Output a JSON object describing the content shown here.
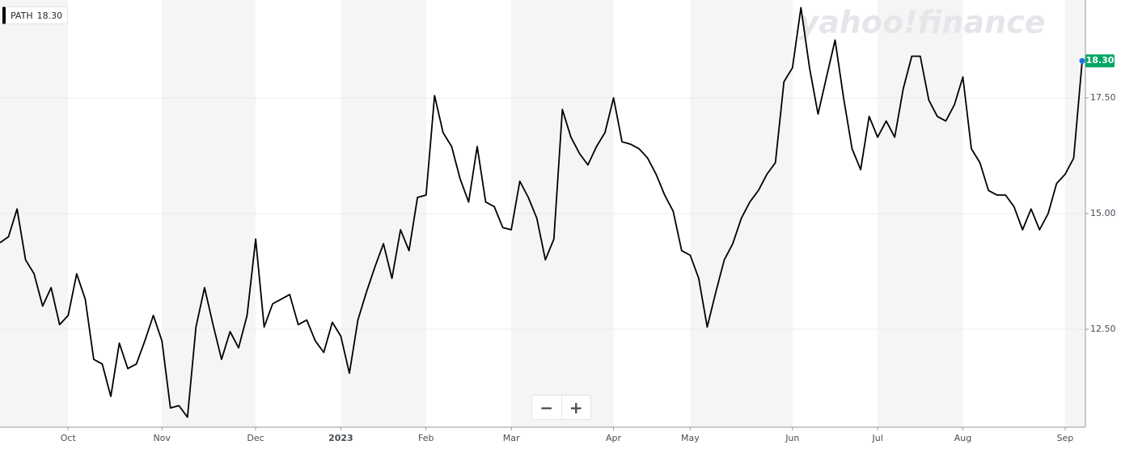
{
  "chart_data": {
    "type": "line",
    "watermark": "yahoo!finance",
    "zoom_controls": [
      "−",
      "+"
    ],
    "categories": [
      null,
      null,
      null,
      null,
      null,
      null,
      null,
      null,
      "Oct",
      null,
      null,
      null,
      null,
      null,
      null,
      null,
      null,
      null,
      null,
      "Nov",
      null,
      null,
      null,
      null,
      null,
      null,
      null,
      null,
      null,
      null,
      "Dec",
      null,
      null,
      null,
      null,
      null,
      null,
      null,
      null,
      null,
      "2023",
      null,
      null,
      null,
      null,
      null,
      null,
      null,
      null,
      null,
      "Feb",
      null,
      null,
      null,
      null,
      null,
      null,
      null,
      null,
      null,
      "Mar",
      null,
      null,
      null,
      null,
      null,
      null,
      null,
      null,
      null,
      null,
      null,
      "Apr",
      null,
      null,
      null,
      null,
      null,
      null,
      null,
      null,
      "May",
      null,
      null,
      null,
      null,
      null,
      null,
      null,
      null,
      null,
      null,
      null,
      "Jun",
      null,
      null,
      null,
      null,
      null,
      null,
      null,
      null,
      null,
      "Jul",
      null,
      null,
      null,
      null,
      null,
      null,
      null,
      null,
      null,
      "Aug",
      null,
      null,
      null,
      null,
      null,
      null,
      null,
      null,
      null,
      null,
      null,
      "Sep",
      null,
      null
    ],
    "series": [
      {
        "name": "PATH",
        "color": "#000000",
        "values": [
          14.37,
          14.5,
          15.1,
          14.0,
          13.7,
          13.0,
          13.4,
          12.6,
          12.8,
          13.7,
          13.15,
          11.85,
          11.75,
          11.05,
          12.2,
          11.65,
          11.75,
          12.25,
          12.8,
          12.25,
          10.8,
          10.85,
          10.6,
          12.55,
          13.4,
          12.6,
          11.85,
          12.45,
          12.1,
          12.8,
          14.45,
          12.55,
          13.05,
          13.15,
          13.25,
          12.6,
          12.7,
          12.25,
          12.0,
          12.65,
          12.35,
          11.55,
          12.7,
          13.3,
          13.85,
          14.35,
          13.6,
          14.65,
          14.2,
          15.35,
          15.4,
          17.55,
          16.75,
          16.45,
          15.75,
          15.25,
          16.45,
          15.25,
          15.15,
          14.7,
          14.65,
          15.7,
          15.35,
          14.9,
          14.0,
          14.45,
          17.25,
          16.65,
          16.3,
          16.05,
          16.45,
          16.75,
          17.5,
          16.55,
          16.5,
          16.4,
          16.2,
          15.85,
          15.4,
          15.05,
          14.2,
          14.1,
          13.6,
          12.55,
          13.3,
          14.0,
          14.35,
          14.9,
          15.25,
          15.5,
          15.85,
          16.1,
          17.85,
          18.15,
          19.45,
          18.15,
          17.15,
          17.95,
          18.75,
          17.5,
          16.4,
          15.95,
          17.1,
          16.65,
          17.0,
          16.65,
          17.7,
          18.4,
          18.4,
          17.45,
          17.1,
          17.0,
          17.35,
          17.95,
          16.4,
          16.1,
          15.5,
          15.4,
          15.4,
          15.15,
          14.65,
          15.1,
          14.65,
          15.0,
          15.65,
          15.85,
          16.2,
          18.3
        ],
        "value_labels": [
          null,
          null,
          null,
          null,
          null,
          null,
          null,
          null,
          null,
          null,
          null,
          null,
          null,
          null,
          null,
          null,
          null,
          null,
          null,
          null,
          null,
          null,
          null,
          null,
          null,
          null,
          null,
          null,
          null,
          null,
          null,
          null,
          null,
          null,
          null,
          null,
          null,
          null,
          null,
          null,
          null,
          null,
          null,
          null,
          null,
          null,
          null,
          null,
          null,
          null,
          null,
          null,
          null,
          null,
          null,
          null,
          null,
          null,
          null,
          null,
          null,
          null,
          null,
          null,
          null,
          null,
          null,
          null,
          null,
          null,
          null,
          null,
          null,
          null,
          null,
          null,
          null,
          null,
          null,
          null,
          null,
          null,
          null,
          null,
          null,
          null,
          null,
          null,
          null,
          null,
          null,
          null,
          null,
          null,
          null,
          null,
          null,
          null,
          null,
          null,
          null,
          null,
          null,
          null,
          null,
          null,
          null,
          null,
          null,
          null,
          null,
          null,
          null,
          null,
          null,
          null,
          null,
          null,
          null,
          null,
          null,
          null,
          null,
          null,
          null,
          null,
          null,
          "18.30"
        ],
        "label_color": "#00a562",
        "marker_color": "#1a73e8"
      }
    ],
    "ylim": [
      10.385,
      19.615
    ],
    "yticks": [
      {
        "value": 12.5,
        "label": "12.50"
      },
      {
        "value": 15,
        "label": "15.00"
      },
      {
        "value": 17.5,
        "label": "17.50"
      }
    ],
    "grid": true,
    "month_shading": true,
    "y_axis_side": "right"
  }
}
